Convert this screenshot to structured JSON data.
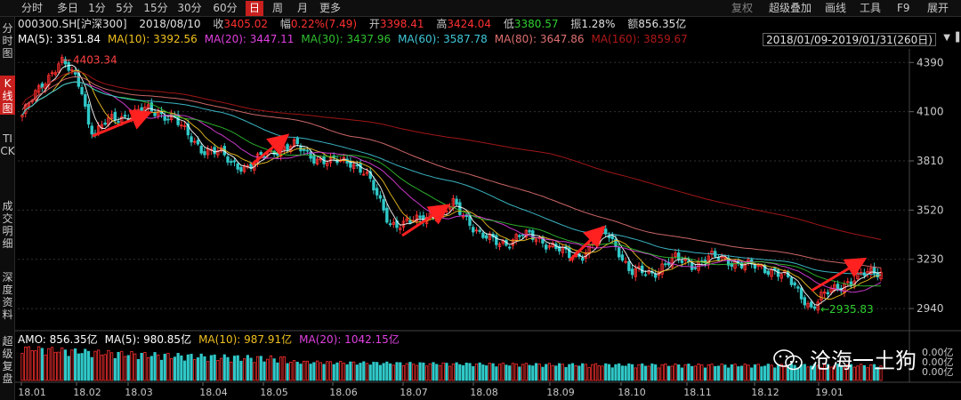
{
  "toolbar": {
    "periods": [
      {
        "label": "分时",
        "active": false
      },
      {
        "label": "多日",
        "active": false
      },
      {
        "label": "1分",
        "active": false
      },
      {
        "label": "5分",
        "active": false
      },
      {
        "label": "15分",
        "active": false
      },
      {
        "label": "30分",
        "active": false
      },
      {
        "label": "60分",
        "active": false
      },
      {
        "label": "日",
        "active": true
      },
      {
        "label": "周",
        "active": false
      },
      {
        "label": "月",
        "active": false
      },
      {
        "label": "更多",
        "active": false
      }
    ],
    "right": [
      {
        "label": "复权",
        "dim": true
      },
      {
        "label": "超级叠加",
        "dim": false
      },
      {
        "label": "画线",
        "dim": false
      },
      {
        "label": "工具",
        "dim": false
      },
      {
        "label": "F9",
        "dim": false
      },
      {
        "label": "展开",
        "dim": false
      }
    ]
  },
  "sidebar": {
    "items": [
      {
        "label": "分时图",
        "active": false
      },
      {
        "label": "K线图",
        "active": true
      },
      {
        "label": "TICK",
        "active": false
      },
      {
        "label": "成交明细",
        "active": false
      },
      {
        "label": "深度资料",
        "active": false
      },
      {
        "label": "超级复盘",
        "active": false
      }
    ]
  },
  "quote": {
    "symbol": "000300.SH[沪深300]",
    "date": "2018/08/10",
    "close_label": "收",
    "close": "3405.02",
    "change_label": "幅",
    "change": "0.22%(7.49)",
    "open_label": "开",
    "open": "3398.41",
    "high_label": "高",
    "high": "3424.04",
    "low_label": "低",
    "low": "3380.57",
    "amp_label": "振",
    "amp": "1.28%",
    "amount_label": "额",
    "amount": "856.35亿"
  },
  "ma": [
    {
      "label": "MA(5):",
      "value": "3351.84",
      "color": "#ffffff"
    },
    {
      "label": "MA(10):",
      "value": "3392.56",
      "color": "#f0c020"
    },
    {
      "label": "MA(20):",
      "value": "3447.11",
      "color": "#e040e0"
    },
    {
      "label": "MA(30):",
      "value": "3437.96",
      "color": "#30c030"
    },
    {
      "label": "MA(60):",
      "value": "3587.78",
      "color": "#40c8d8"
    },
    {
      "label": "MA(80):",
      "value": "3647.86",
      "color": "#e07070"
    },
    {
      "label": "MA(160):",
      "value": "3859.67",
      "color": "#b01818"
    }
  ],
  "range": "2018/01/09-2019/01/31(260日)",
  "volume_info": [
    {
      "label": "AMO:",
      "value": "856.35亿",
      "color": "#ffffff"
    },
    {
      "label": "MA(5):",
      "value": "980.85亿",
      "color": "#ffffff"
    },
    {
      "label": "MA(10):",
      "value": "987.91亿",
      "color": "#f0c020"
    },
    {
      "label": "MA(20):",
      "value": "1042.15亿",
      "color": "#e040e0"
    }
  ],
  "watermark": "沧海一土狗",
  "chart_data": {
    "type": "candlestick",
    "ylim": [
      2820,
      4470
    ],
    "yticks": [
      4390,
      4100,
      3810,
      3520,
      3230,
      2940
    ],
    "xticks": [
      "18.01",
      "18.02",
      "18.03",
      "18.04",
      "18.05",
      "18.06",
      "18.07",
      "18.08",
      "18.09",
      "18.10",
      "18.11",
      "18.12",
      "19.01"
    ],
    "annotations": [
      {
        "text": "4403.34",
        "value": 4403.34
      },
      {
        "text": "2935.83",
        "value": 2935.83
      }
    ],
    "volume_ticks": [
      "0.00亿",
      "0.00亿",
      "0.00亿"
    ],
    "colors": {
      "up": "#ff3030",
      "down": "#30c8c8"
    }
  }
}
